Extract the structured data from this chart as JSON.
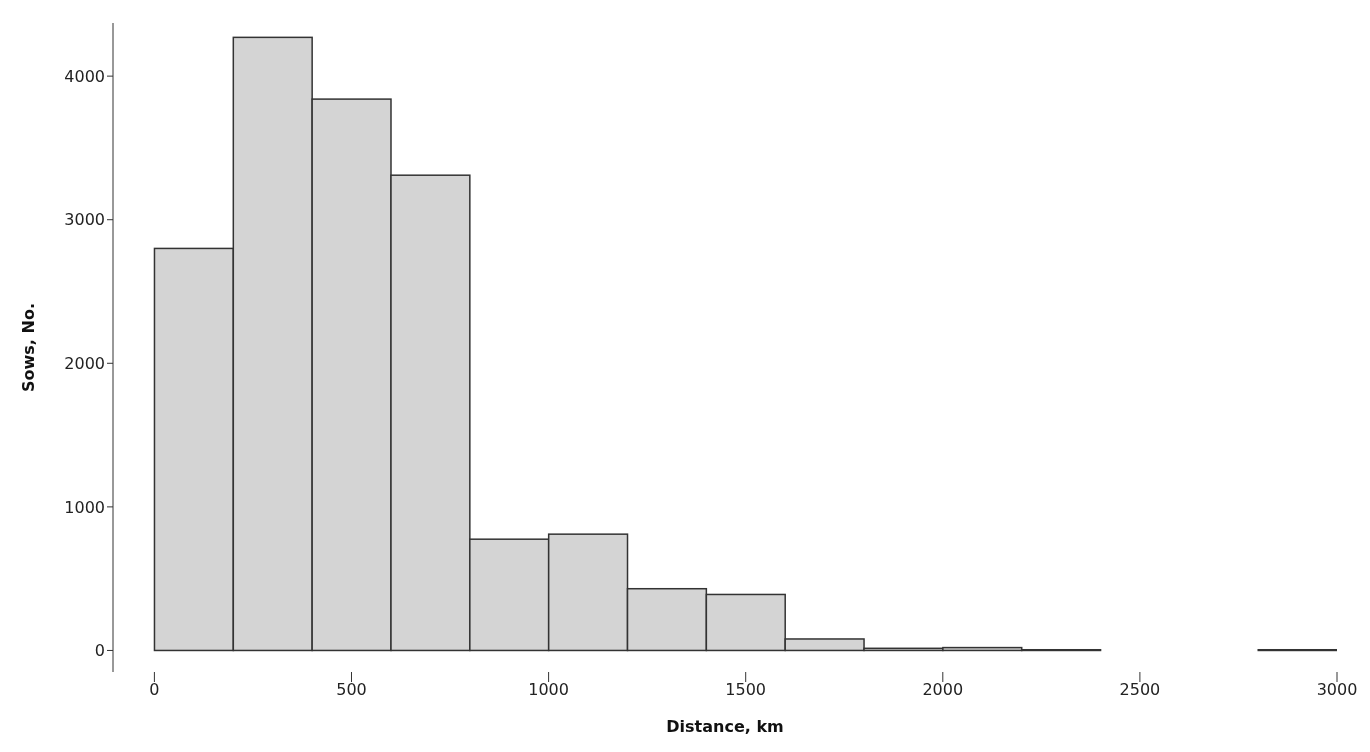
{
  "chart_data": {
    "type": "histogram",
    "xlabel": "Distance, km",
    "ylabel": "Sows, No.",
    "bins": [
      0,
      200,
      400,
      600,
      800,
      1000,
      1200,
      1400,
      1600,
      1800,
      2000,
      2200,
      2400,
      2600,
      2800,
      3000
    ],
    "values": [
      2800,
      4270,
      3840,
      3310,
      775,
      810,
      430,
      390,
      80,
      15,
      20,
      5,
      0,
      0,
      5
    ],
    "color": "#d4d4d4",
    "xlim": [
      -105,
      3000
    ],
    "xticks": [
      0,
      500,
      1000,
      1500,
      2000,
      2500,
      3000
    ],
    "ylim": [
      -150,
      4370
    ],
    "yticks": [
      0,
      1000,
      2000,
      3000,
      4000
    ],
    "grid": false,
    "legend": false
  }
}
